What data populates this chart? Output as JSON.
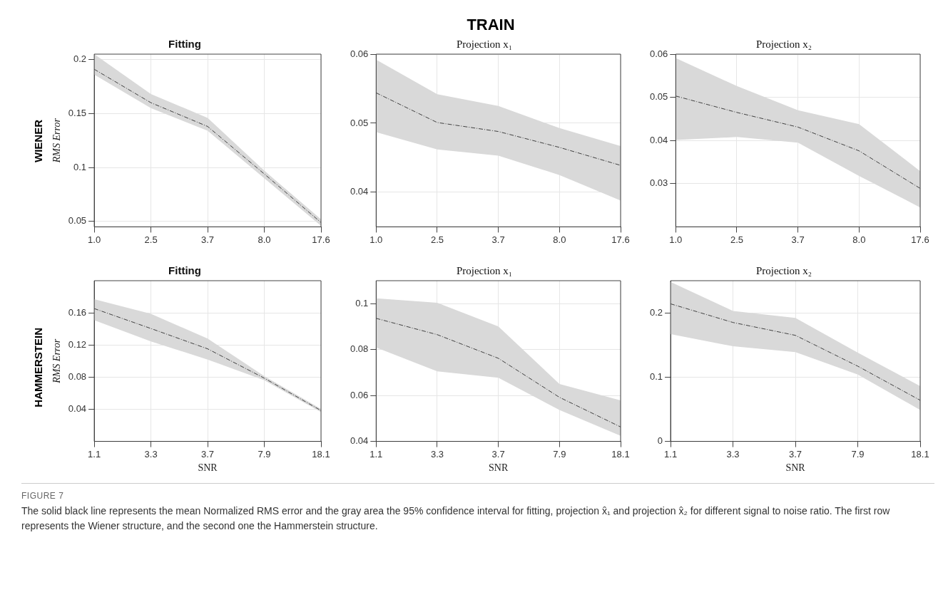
{
  "chart_data": [
    {
      "type": "line",
      "title": "Fitting",
      "ylabel": "RMS Error",
      "annotations": [
        "WIENER"
      ],
      "categories": [
        "1.0",
        "2.5",
        "3.7",
        "8.0",
        "17.6"
      ],
      "grid": true,
      "line_style": "dashed",
      "ylim": [
        0.045,
        0.205
      ],
      "yticks": [
        0.05,
        0.1,
        0.15,
        0.2
      ],
      "series": [
        {
          "color": "#404040",
          "values": [
            0.191,
            0.16,
            0.138,
            0.094,
            0.049
          ],
          "lower": [
            0.186,
            0.155,
            0.134,
            0.09,
            0.046
          ],
          "upper": [
            0.205,
            0.168,
            0.146,
            0.097,
            0.052
          ]
        }
      ]
    },
    {
      "type": "line",
      "title": "Projection x₁",
      "annotations": [
        "TRAIN"
      ],
      "categories": [
        "1.0",
        "2.5",
        "3.7",
        "8.0",
        "17.6"
      ],
      "grid": true,
      "line_style": "dashed",
      "ylim": [
        0.035,
        0.06
      ],
      "yticks": [
        0.04,
        0.05,
        0.06
      ],
      "series": [
        {
          "color": "#404040",
          "values": [
            0.0544,
            0.0501,
            0.0488,
            0.0465,
            0.0439
          ],
          "lower": [
            0.0487,
            0.0462,
            0.0453,
            0.0425,
            0.0388
          ],
          "upper": [
            0.0592,
            0.0542,
            0.0525,
            0.0493,
            0.0467
          ]
        }
      ]
    },
    {
      "type": "line",
      "title": "Projection x₂",
      "categories": [
        "1.0",
        "2.5",
        "3.7",
        "8.0",
        "17.6"
      ],
      "grid": true,
      "line_style": "dashed",
      "ylim": [
        0.02,
        0.06
      ],
      "yticks": [
        0.03,
        0.04,
        0.05,
        0.06
      ],
      "series": [
        {
          "color": "#404040",
          "values": [
            0.0503,
            0.0465,
            0.0431,
            0.0376,
            0.0289
          ],
          "lower": [
            0.0401,
            0.0408,
            0.0395,
            0.0318,
            0.0245
          ],
          "upper": [
            0.0591,
            0.0526,
            0.047,
            0.0438,
            0.0329
          ]
        }
      ]
    },
    {
      "type": "line",
      "title": "Fitting",
      "ylabel": "RMS Error",
      "xlabel": "SNR",
      "annotations": [
        "HAMMERSTEIN"
      ],
      "categories": [
        "1.1",
        "3.3",
        "3.7",
        "7.9",
        "18.1"
      ],
      "grid": true,
      "line_style": "dashed",
      "ylim": [
        0,
        0.2
      ],
      "yticks": [
        0.04,
        0.08,
        0.12,
        0.16
      ],
      "series": [
        {
          "color": "#404040",
          "values": [
            0.1653,
            0.1405,
            0.1152,
            0.0787,
            0.0384
          ],
          "lower": [
            0.1507,
            0.1245,
            0.1019,
            0.076,
            0.0365
          ],
          "upper": [
            0.177,
            0.1587,
            0.128,
            0.0813,
            0.0405
          ]
        }
      ]
    },
    {
      "type": "line",
      "title": "Projection x₁",
      "xlabel": "SNR",
      "categories": [
        "1.1",
        "3.3",
        "3.7",
        "7.9",
        "18.1"
      ],
      "grid": true,
      "line_style": "dashed",
      "ylim": [
        0.04,
        0.11
      ],
      "yticks": [
        0.04,
        0.06,
        0.08,
        0.1
      ],
      "series": [
        {
          "color": "#404040",
          "values": [
            0.0936,
            0.0865,
            0.0762,
            0.0592,
            0.0463
          ],
          "lower": [
            0.0809,
            0.0705,
            0.0677,
            0.0537,
            0.0424
          ],
          "upper": [
            0.1023,
            0.1004,
            0.0901,
            0.065,
            0.0579
          ]
        }
      ]
    },
    {
      "type": "line",
      "title": "Projection x₂",
      "xlabel": "SNR",
      "annotations": [
        "FIGURE 7",
        "The solid black line represents the mean Normalized RMS error and the gray area the 95% confidence interval for fitting, projection x̂₁ and projection x̂₂ for different signal to noise ratio. The first row represents the Wiener structure, and the second one the Hammerstein structure."
      ],
      "categories": [
        "1.1",
        "3.3",
        "3.7",
        "7.9",
        "18.1"
      ],
      "grid": true,
      "line_style": "dashed",
      "ylim": [
        0,
        0.25
      ],
      "yticks": [
        0,
        0.1,
        0.2
      ],
      "series": [
        {
          "color": "#404040",
          "values": [
            0.214,
            0.185,
            0.165,
            0.117,
            0.064
          ],
          "lower": [
            0.167,
            0.148,
            0.139,
            0.104,
            0.049
          ],
          "upper": [
            0.248,
            0.203,
            0.192,
            0.138,
            0.086
          ]
        }
      ]
    }
  ]
}
